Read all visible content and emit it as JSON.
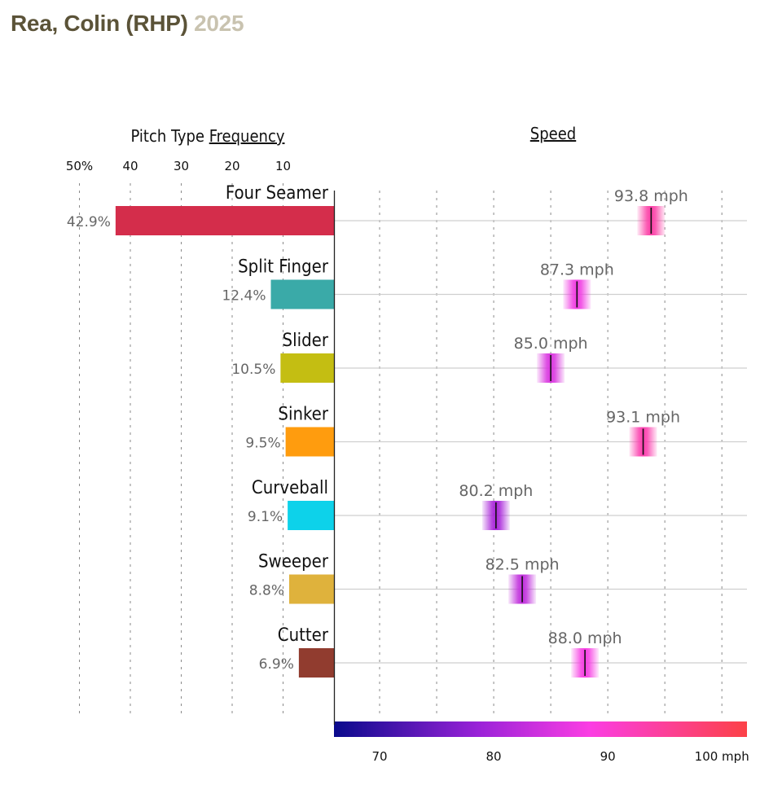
{
  "header": {
    "name": "Rea, Colin (RHP)",
    "year": "2025"
  },
  "chart_data": {
    "type": "bar",
    "frequency_title_prefix": "Pitch Type ",
    "frequency_title_link": "Frequency",
    "speed_title": "Speed",
    "frequency_ticks": [
      "50%",
      "40",
      "30",
      "20",
      "10"
    ],
    "frequency_tick_values": [
      50,
      40,
      30,
      20,
      10
    ],
    "speed_ticks": [
      "70",
      "80",
      "90",
      "100 mph"
    ],
    "speed_tick_values": [
      70,
      80,
      90,
      100
    ],
    "speed_range": [
      66,
      102.2
    ],
    "pitches": [
      {
        "name": "Four Seamer",
        "freq": 42.9,
        "freq_label": "42.9%",
        "speed": 93.8,
        "speed_label": "93.8 mph",
        "color": "#d42d4b"
      },
      {
        "name": "Split Finger",
        "freq": 12.4,
        "freq_label": "12.4%",
        "speed": 87.3,
        "speed_label": "87.3 mph",
        "color": "#3aaaa8"
      },
      {
        "name": "Slider",
        "freq": 10.5,
        "freq_label": "10.5%",
        "speed": 85.0,
        "speed_label": "85.0 mph",
        "color": "#c4be12"
      },
      {
        "name": "Sinker",
        "freq": 9.5,
        "freq_label": "9.5%",
        "speed": 93.1,
        "speed_label": "93.1 mph",
        "color": "#ff9c0e"
      },
      {
        "name": "Curveball",
        "freq": 9.1,
        "freq_label": "9.1%",
        "speed": 80.2,
        "speed_label": "80.2 mph",
        "color": "#0dd2ea"
      },
      {
        "name": "Sweeper",
        "freq": 8.8,
        "freq_label": "8.8%",
        "speed": 82.5,
        "speed_label": "82.5 mph",
        "color": "#dfb23c"
      },
      {
        "name": "Cutter",
        "freq": 6.9,
        "freq_label": "6.9%",
        "speed": 88.0,
        "speed_label": "88.0 mph",
        "color": "#913c2f"
      }
    ]
  }
}
